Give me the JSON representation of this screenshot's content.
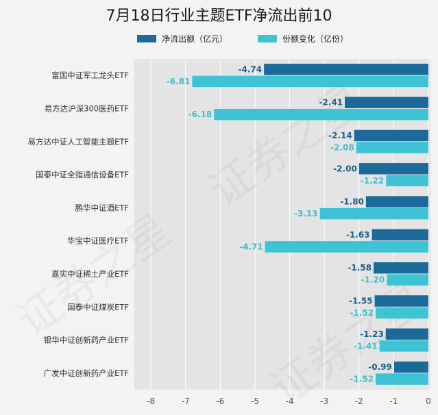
{
  "chart_data": {
    "type": "bar",
    "orientation": "horizontal",
    "title": "7月18日行业主题ETF净流出前10",
    "categories": [
      "富国中证军工龙头ETF",
      "易方达沪深300医药ETF",
      "易方达中证人工智能主题ETF",
      "国泰中证全指通信设备ETF",
      "鹏华中证酒ETF",
      "华宝中证医疗ETF",
      "嘉实中证稀土产业ETF",
      "国泰中证煤炭ETF",
      "银华中证创新药产业ETF",
      "广发中证创新药产业ETF"
    ],
    "series": [
      {
        "name": "净流出额（亿元）",
        "color": "#1b6a99",
        "values": [
          -4.74,
          -2.41,
          -2.14,
          -2.0,
          -1.8,
          -1.63,
          -1.58,
          -1.55,
          -1.23,
          -0.99
        ],
        "labels": [
          "-4.74",
          "-2.41",
          "-2.14",
          "-2.00",
          "-1.80",
          "-1.63",
          "-1.58",
          "-1.55",
          "-1.23",
          "-0.99"
        ]
      },
      {
        "name": "份额变化（亿份）",
        "color": "#3ec3d4",
        "values": [
          -6.81,
          -6.18,
          -2.08,
          -1.22,
          -3.13,
          -4.71,
          -1.2,
          -1.52,
          -1.41,
          -1.52
        ],
        "labels": [
          "-6.81",
          "-6.18",
          "-2.08",
          "-1.22",
          "-3.13",
          "-4.71",
          "-1.20",
          "-1.52",
          "-1.41",
          "-1.52"
        ]
      }
    ],
    "xlim": [
      -8.5,
      0
    ],
    "xticks": [
      -8,
      -7,
      -6,
      -5,
      -4,
      -3,
      -2,
      -1,
      0
    ],
    "xtick_labels": [
      "-8",
      "-7",
      "-6",
      "-5",
      "-4",
      "-3",
      "-2",
      "-1",
      "0"
    ],
    "grid": true,
    "legend_position": "top",
    "watermark": "证券之星"
  }
}
